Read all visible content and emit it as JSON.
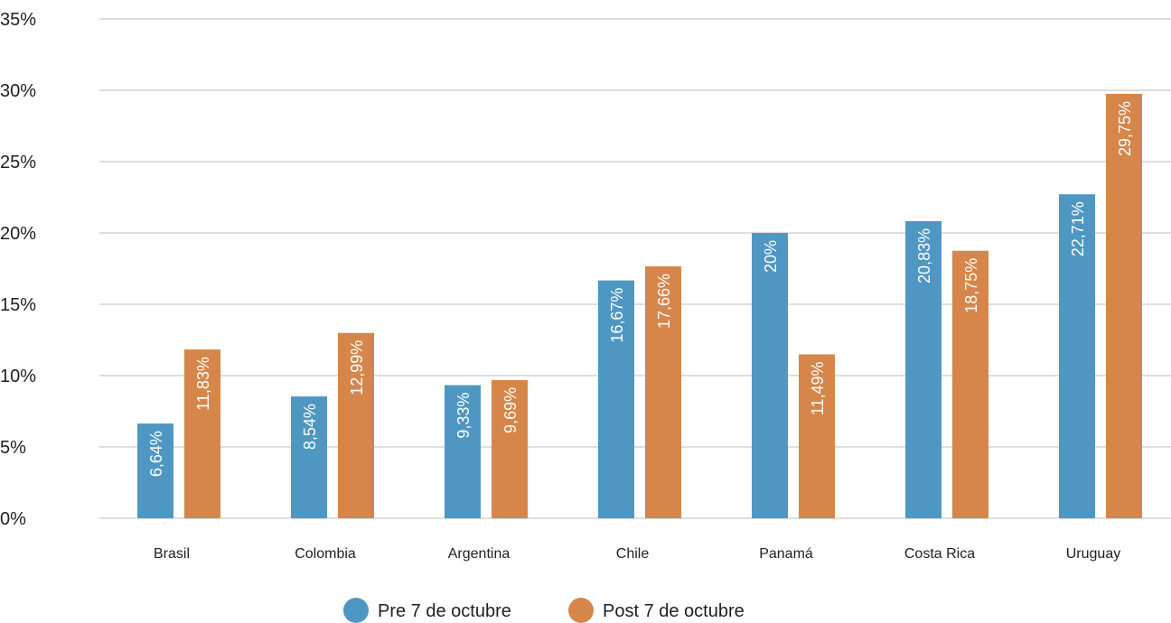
{
  "chart_data": {
    "type": "bar",
    "categories": [
      "Brasil",
      "Colombia",
      "Argentina",
      "Chile",
      "Panamá",
      "Costa Rica",
      "Uruguay"
    ],
    "series": [
      {
        "name": "Pre 7 de octubre",
        "color": "#4f97c3",
        "values": [
          6.64,
          8.54,
          9.33,
          16.67,
          20,
          20.83,
          22.71
        ],
        "labels": [
          "6,64%",
          "8,54%",
          "9,33%",
          "16,67%",
          "20%",
          "20,83%",
          "22,71%"
        ]
      },
      {
        "name": "Post 7 de octubre",
        "color": "#d6864a",
        "values": [
          11.83,
          12.99,
          9.69,
          17.66,
          11.49,
          18.75,
          29.75
        ],
        "labels": [
          "11,83%",
          "12,99%",
          "9,69%",
          "17,66%",
          "11,49%",
          "18,75%",
          "29,75%"
        ]
      }
    ],
    "ylim": [
      0,
      35
    ],
    "yticks": [
      {
        "value": 0,
        "label": "0%"
      },
      {
        "value": 5,
        "label": "5%"
      },
      {
        "value": 10,
        "label": "10%"
      },
      {
        "value": 15,
        "label": "15%"
      },
      {
        "value": 20,
        "label": "20%"
      },
      {
        "value": 25,
        "label": "25%"
      },
      {
        "value": 30,
        "label": "30%"
      },
      {
        "value": 35,
        "label": "35%"
      }
    ],
    "grid": true,
    "legend_position": "bottom-center"
  }
}
